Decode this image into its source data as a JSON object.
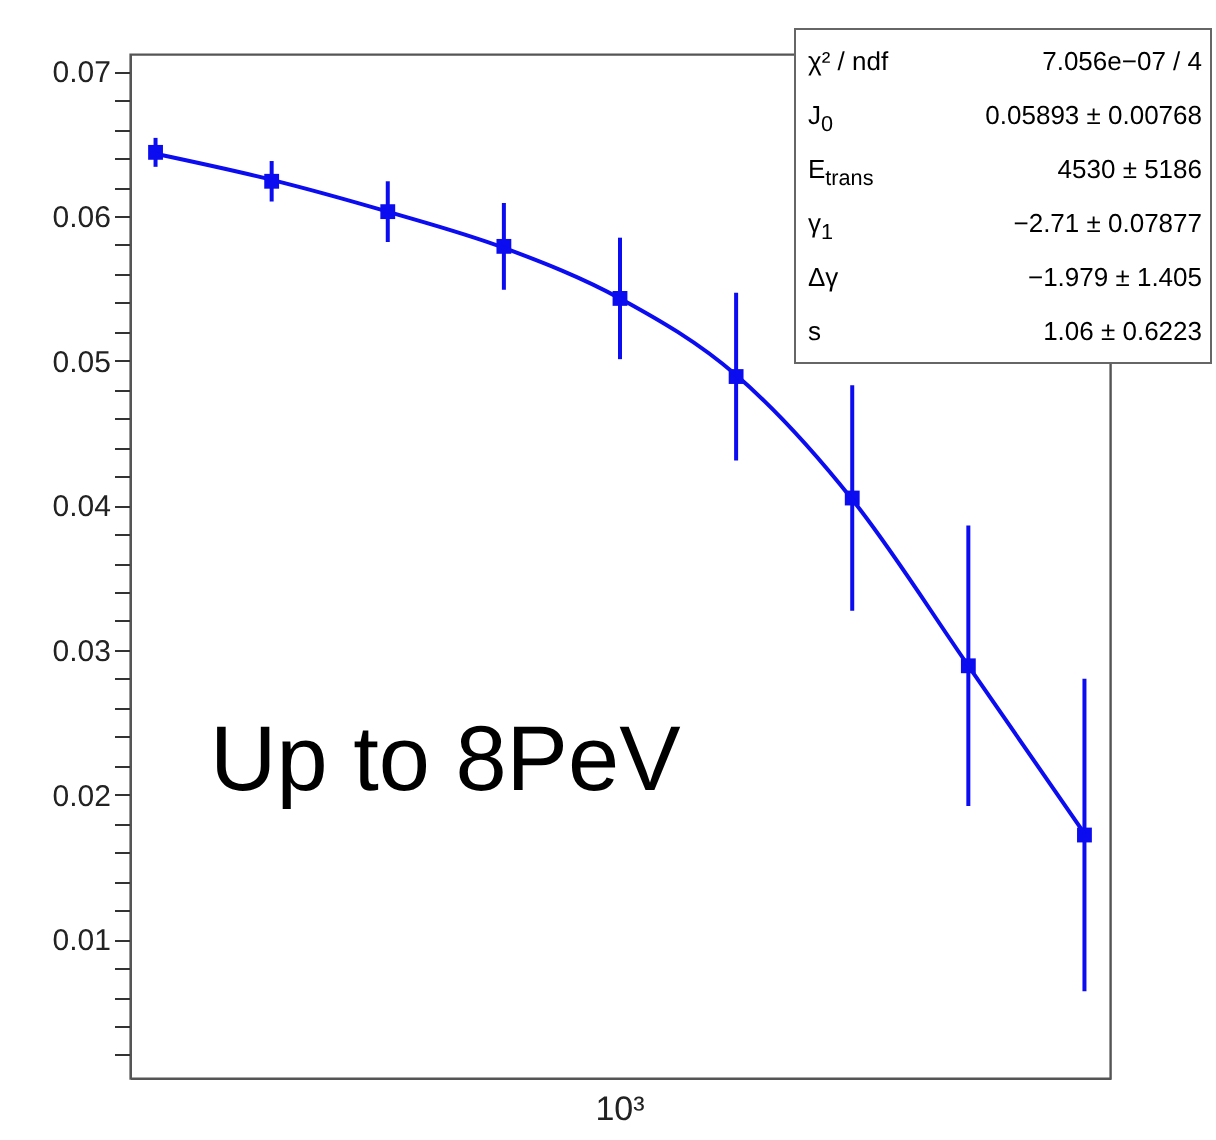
{
  "chart_data": {
    "type": "scatter",
    "categories": [
      null,
      null,
      null,
      null,
      null,
      null,
      null,
      null,
      null
    ],
    "series": [
      {
        "color": "#0c0cf0",
        "marker": "square",
        "values": [
          0.0644,
          0.0624,
          0.0603,
          0.0579,
          0.0543,
          0.0489,
          0.0405,
          0.0289,
          0.0172
        ],
        "errors": [
          0.001,
          0.0014,
          0.0021,
          0.003,
          0.0042,
          0.0058,
          0.0078,
          0.0097,
          0.0108
        ]
      },
      {
        "type": "line",
        "color": "#0c0cf0",
        "marker": "none",
        "values": [
          0.0643,
          0.0625,
          0.0603,
          0.0578,
          0.0543,
          0.049,
          0.0404,
          0.0289,
          0.0173
        ]
      }
    ],
    "ylim": [
      0.0004,
      0.0712
    ],
    "yticks": [
      {
        "value": 0.002,
        "label": null
      },
      {
        "value": 0.004,
        "label": null
      },
      {
        "value": 0.006,
        "label": null
      },
      {
        "value": 0.008,
        "label": null
      },
      0.01,
      {
        "value": 0.012,
        "label": null
      },
      {
        "value": 0.014,
        "label": null
      },
      {
        "value": 0.016,
        "label": null
      },
      {
        "value": 0.018,
        "label": null
      },
      0.02,
      {
        "value": 0.022,
        "label": null
      },
      {
        "value": 0.024,
        "label": null
      },
      {
        "value": 0.026,
        "label": null
      },
      {
        "value": 0.028,
        "label": null
      },
      0.03,
      {
        "value": 0.032,
        "label": null
      },
      {
        "value": 0.034,
        "label": null
      },
      {
        "value": 0.036,
        "label": null
      },
      {
        "value": 0.038,
        "label": null
      },
      0.04,
      {
        "value": 0.042,
        "label": null
      },
      {
        "value": 0.044,
        "label": null
      },
      {
        "value": 0.046,
        "label": null
      },
      {
        "value": 0.048,
        "label": null
      },
      0.05,
      {
        "value": 0.052,
        "label": null
      },
      {
        "value": 0.054,
        "label": null
      },
      {
        "value": 0.056,
        "label": null
      },
      {
        "value": 0.058,
        "label": null
      },
      0.06,
      {
        "value": 0.062,
        "label": null
      },
      {
        "value": 0.064,
        "label": null
      },
      {
        "value": 0.066,
        "label": null
      },
      {
        "value": 0.068,
        "label": null
      },
      0.07
    ],
    "annotations": [
      "χ² / ndf",
      "7.056e−07 / 4",
      "J$_{0}$",
      "0.05893 ± 0.00768",
      "E$_{trans}$",
      "4530 ±  5186",
      "γ$_{1}$",
      "−2.71 ± 0.07877",
      "Δγ",
      "−1.979 ± 1.405",
      "s",
      "1.06 ± 0.6223",
      "10³",
      "Up to 8PeV"
    ]
  }
}
